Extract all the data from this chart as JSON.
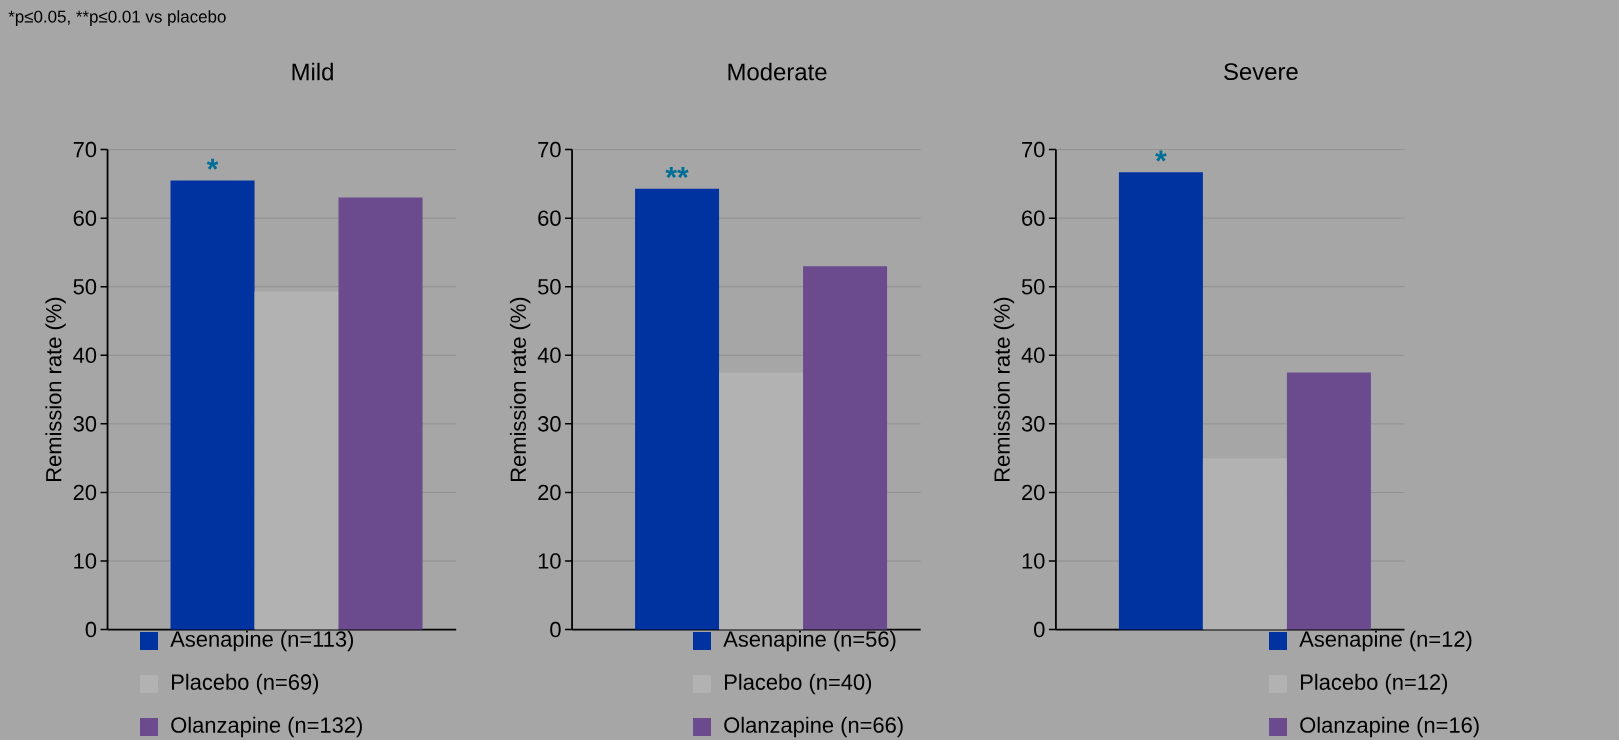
{
  "chart_data": [
    {
      "type": "bar",
      "title": "Mild",
      "ylabel": "Remission rate (%)",
      "categories": [
        null
      ],
      "series": [
        {
          "name": "Asenapine (n=113)",
          "color": "#0033a0",
          "values": [
            65.5
          ],
          "value_labels": [
            "*"
          ]
        },
        {
          "name": "Placebo (n=69)",
          "color": "#b2b2b2",
          "values": [
            49.3
          ]
        },
        {
          "name": "Olanzapine (n=132)",
          "color": "#6b4a8d",
          "values": [
            63.0
          ]
        }
      ],
      "ylim": [
        0,
        70
      ],
      "yticks": [
        0,
        10,
        20,
        30,
        40,
        50,
        60,
        70
      ],
      "grid": "y",
      "legend": "bottom",
      "annotations": [
        "*p≤0.05, **p≤0.01 vs placebo"
      ]
    },
    {
      "type": "bar",
      "title": "Moderate",
      "ylabel": "Remission rate (%)",
      "categories": [
        null
      ],
      "series": [
        {
          "name": "Asenapine (n=56)",
          "color": "#0033a0",
          "values": [
            64.3
          ],
          "value_labels": [
            "**"
          ]
        },
        {
          "name": "Placebo (n=40)",
          "color": "#b2b2b2",
          "values": [
            37.5
          ]
        },
        {
          "name": "Olanzapine (n=66)",
          "color": "#6b4a8d",
          "values": [
            53.0
          ]
        }
      ],
      "ylim": [
        0,
        70
      ],
      "yticks": [
        0,
        10,
        20,
        30,
        40,
        50,
        60,
        70
      ],
      "grid": "y",
      "legend": "bottom"
    },
    {
      "type": "bar",
      "title": "Severe",
      "ylabel": "Remission rate (%)",
      "categories": [
        null
      ],
      "series": [
        {
          "name": "Asenapine (n=12)",
          "color": "#0033a0",
          "values": [
            66.7
          ],
          "value_labels": [
            "*"
          ]
        },
        {
          "name": "Placebo (n=12)",
          "color": "#b2b2b2",
          "values": [
            25.0
          ]
        },
        {
          "name": "Olanzapine (n=16)",
          "color": "#6b4a8d",
          "values": [
            37.5
          ]
        }
      ],
      "ylim": [
        0,
        70
      ],
      "yticks": [
        0,
        10,
        20,
        30,
        40,
        50,
        60,
        70
      ],
      "grid": "y",
      "legend": "bottom"
    }
  ]
}
